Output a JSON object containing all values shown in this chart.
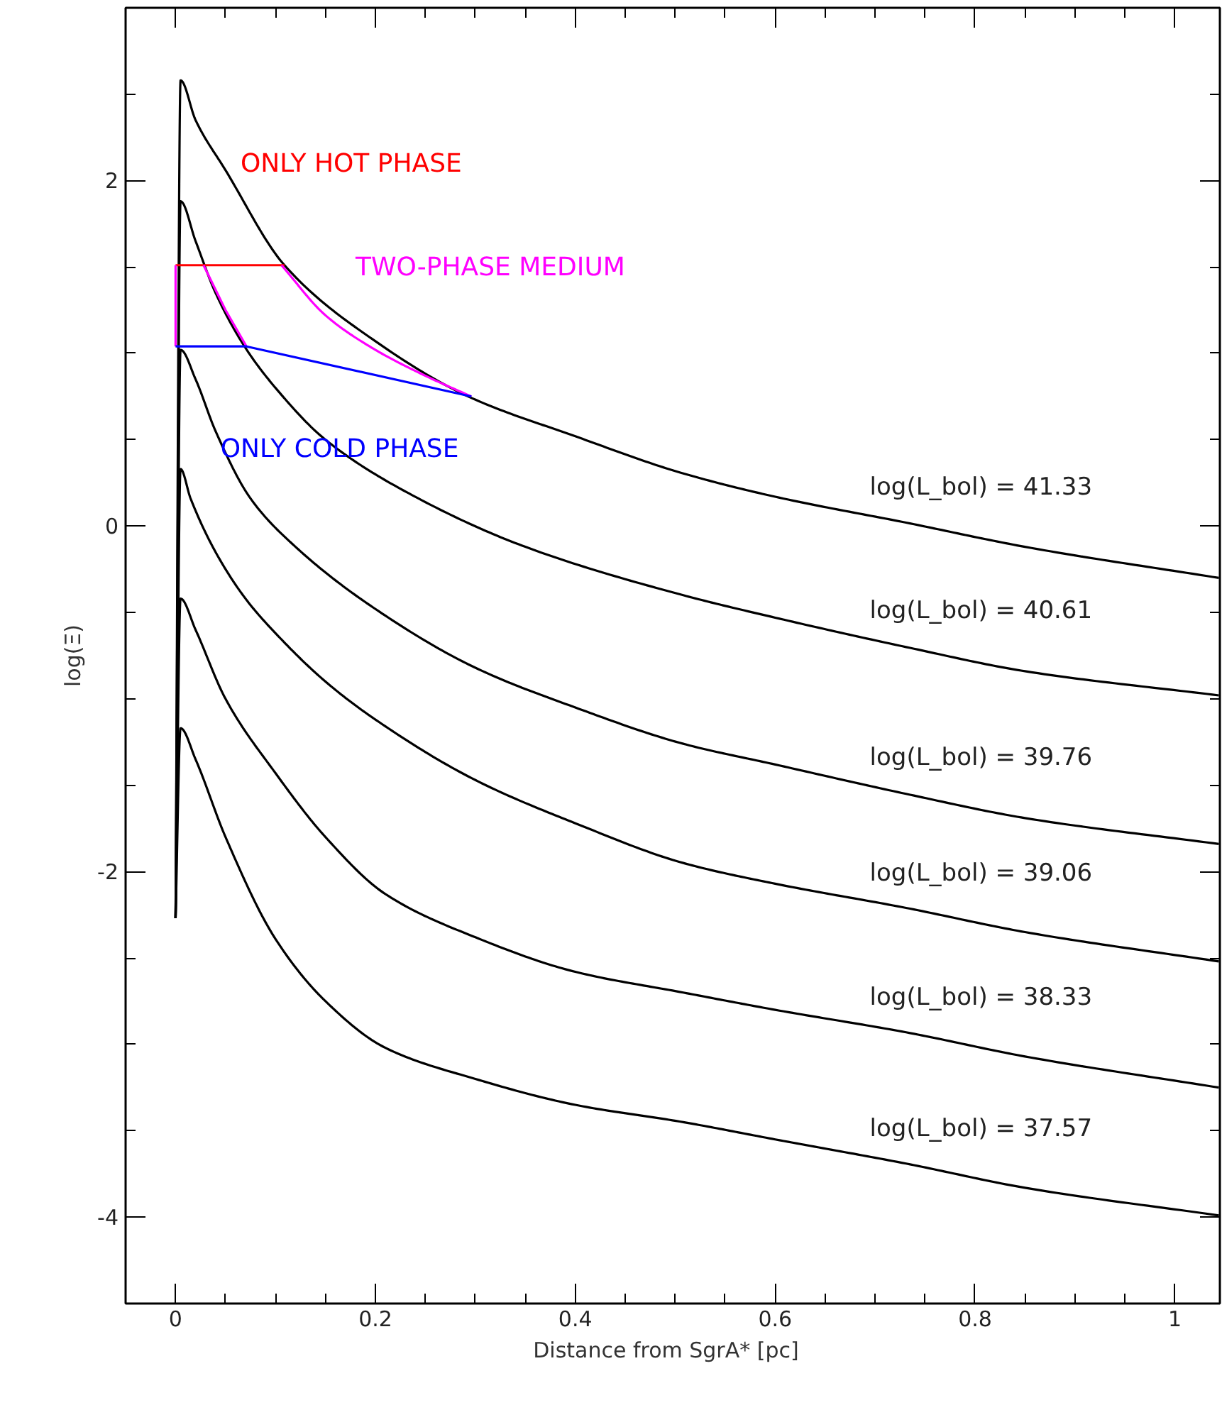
{
  "chart_data": {
    "type": "line",
    "xlabel": "Distance from SgrA*   [pc]",
    "ylabel": "log(Ξ)",
    "xlim": [
      -0.05,
      1.045
    ],
    "ylim": [
      -4.5,
      3.0
    ],
    "xticks": [
      0,
      0.2,
      0.4,
      0.6,
      0.8,
      1,
      {
        "value": 0.05,
        "label": null
      },
      {
        "value": 0.1,
        "label": null
      },
      {
        "value": 0.15,
        "label": null
      },
      {
        "value": 0.25,
        "label": null
      },
      {
        "value": 0.3,
        "label": null
      },
      {
        "value": 0.35,
        "label": null
      },
      {
        "value": 0.45,
        "label": null
      },
      {
        "value": 0.5,
        "label": null
      },
      {
        "value": 0.55,
        "label": null
      },
      {
        "value": 0.65,
        "label": null
      },
      {
        "value": 0.7,
        "label": null
      },
      {
        "value": 0.75,
        "label": null
      },
      {
        "value": 0.85,
        "label": null
      },
      {
        "value": 0.9,
        "label": null
      },
      {
        "value": 0.95,
        "label": null
      }
    ],
    "yticks": [
      -4,
      -2,
      0,
      2,
      {
        "value": -3.5,
        "label": null
      },
      {
        "value": -3,
        "label": null
      },
      {
        "value": -2.5,
        "label": null
      },
      {
        "value": -1.5,
        "label": null
      },
      {
        "value": -1,
        "label": null
      },
      {
        "value": -0.5,
        "label": null
      },
      {
        "value": 0.5,
        "label": null
      },
      {
        "value": 1,
        "label": null
      },
      {
        "value": 1.5,
        "label": null
      },
      {
        "value": 2.5,
        "label": null
      }
    ],
    "grid": false,
    "series": [
      {
        "name": "log(L_bol) = 41.33",
        "color": "#000000",
        "x": [
          0,
          0.005,
          0.02,
          0.05,
          0.109,
          0.2,
          0.293,
          0.4,
          0.505,
          0.6,
          0.731,
          0.85,
          1.044
        ],
        "values": [
          -2.27,
          2.58,
          2.35,
          2.06,
          1.51,
          1.07,
          0.75,
          0.52,
          0.31,
          0.17,
          0.02,
          -0.12,
          -0.3
        ]
      },
      {
        "name": "log(L_bol) = 40.61",
        "color": "#000000",
        "x": [
          0,
          0.005,
          0.02,
          0.04,
          0.069,
          0.1,
          0.15,
          0.243,
          0.35,
          0.508,
          0.6,
          0.731,
          0.85,
          1.044
        ],
        "values": [
          -2.27,
          1.88,
          1.65,
          1.35,
          1.04,
          0.8,
          0.5,
          0.16,
          -0.12,
          -0.4,
          -0.53,
          -0.7,
          -0.84,
          -0.98
        ]
      },
      {
        "name": "log(L_bol) = 39.76",
        "color": "#000000",
        "x": [
          0,
          0.005,
          0.02,
          0.04,
          0.075,
          0.12,
          0.2,
          0.3,
          0.4,
          0.508,
          0.6,
          0.731,
          0.85,
          1.044
        ],
        "values": [
          -2.27,
          1.02,
          0.85,
          0.55,
          0.16,
          -0.12,
          -0.48,
          -0.82,
          -1.05,
          -1.26,
          -1.38,
          -1.55,
          -1.69,
          -1.84
        ]
      },
      {
        "name": "log(L_bol) = 39.06",
        "color": "#000000",
        "x": [
          0,
          0.005,
          0.015,
          0.04,
          0.07,
          0.1,
          0.15,
          0.2,
          0.3,
          0.4,
          0.508,
          0.6,
          0.731,
          0.85,
          1.044
        ],
        "values": [
          -2.27,
          0.33,
          0.16,
          -0.15,
          -0.42,
          -0.62,
          -0.9,
          -1.12,
          -1.47,
          -1.72,
          -1.95,
          -2.07,
          -2.21,
          -2.35,
          -2.52
        ]
      },
      {
        "name": "log(L_bol) = 38.33",
        "color": "#000000",
        "x": [
          0,
          0.005,
          0.02,
          0.05,
          0.1,
          0.15,
          0.21,
          0.3,
          0.4,
          0.508,
          0.6,
          0.731,
          0.85,
          1.044
        ],
        "values": [
          -2.27,
          -0.42,
          -0.6,
          -1.0,
          -1.43,
          -1.8,
          -2.13,
          -2.38,
          -2.58,
          -2.7,
          -2.8,
          -2.93,
          -3.07,
          -3.25
        ]
      },
      {
        "name": "log(L_bol) = 37.57",
        "color": "#000000",
        "x": [
          0,
          0.005,
          0.02,
          0.05,
          0.1,
          0.15,
          0.21,
          0.3,
          0.4,
          0.508,
          0.6,
          0.731,
          0.85,
          1.044
        ],
        "values": [
          -2.27,
          -1.17,
          -1.35,
          -1.8,
          -2.39,
          -2.75,
          -3.02,
          -3.2,
          -3.35,
          -3.45,
          -3.55,
          -3.69,
          -3.83,
          -3.99
        ]
      },
      {
        "name": "ONLY HOT PHASE",
        "color": "#ff0000",
        "x": [
          0,
          0.109
        ],
        "values": [
          1.51,
          1.51
        ]
      },
      {
        "name": "TWO-PHASE MEDIUM",
        "color": "#ff00ff",
        "x": [
          0,
          0,
          null,
          0.028,
          0.05,
          0.071,
          null,
          0.106,
          0.15,
          0.2,
          0.25,
          0.296
        ],
        "values": [
          1.04,
          1.51,
          null,
          1.51,
          1.25,
          1.04,
          null,
          1.51,
          1.22,
          1.02,
          0.87,
          0.75
        ]
      },
      {
        "name": "ONLY COLD PHASE",
        "color": "#0000ff",
        "x": [
          0,
          0.071,
          0.296
        ],
        "values": [
          1.04,
          1.04,
          0.75
        ]
      }
    ]
  }
}
